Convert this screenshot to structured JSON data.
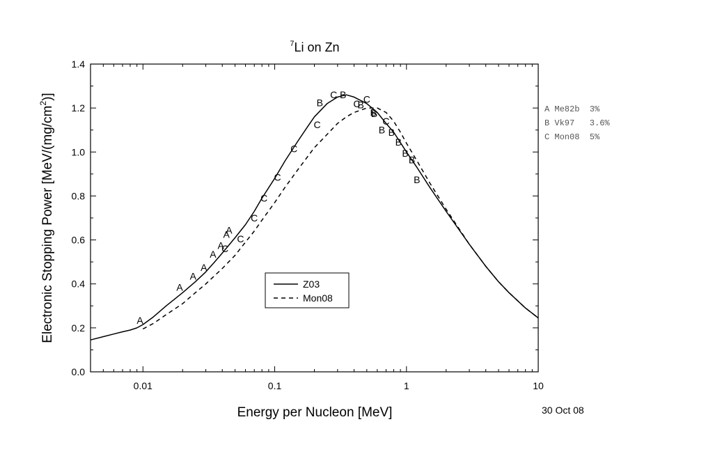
{
  "chart_data": {
    "type": "line",
    "title": {
      "superscript": "7",
      "text": "Li on Zn"
    },
    "xlabel": "Energy per Nucleon [MeV]",
    "ylabel": {
      "main": "Electronic Stopping Power [MeV/(mg/cm",
      "sup": "2",
      "end": ")]"
    },
    "xscale": "log",
    "xlim": [
      0.004,
      10
    ],
    "ylim": [
      0,
      1.4
    ],
    "x_ticks": [
      {
        "value": 0.01,
        "label": "0.01"
      },
      {
        "value": 0.1,
        "label": "0.1"
      },
      {
        "value": 1,
        "label": "1"
      },
      {
        "value": 10,
        "label": "10"
      }
    ],
    "y_ticks": [
      {
        "value": 0,
        "label": "0.0"
      },
      {
        "value": 0.2,
        "label": "0.2"
      },
      {
        "value": 0.4,
        "label": "0.4"
      },
      {
        "value": 0.6,
        "label": "0.6"
      },
      {
        "value": 0.8,
        "label": "0.8"
      },
      {
        "value": 1.0,
        "label": "1.0"
      },
      {
        "value": 1.2,
        "label": "1.2"
      },
      {
        "value": 1.4,
        "label": "1.4"
      }
    ],
    "series": [
      {
        "name": "Z03",
        "style": "solid",
        "x": [
          0.004,
          0.005,
          0.006,
          0.007,
          0.008,
          0.009,
          0.01,
          0.012,
          0.015,
          0.02,
          0.025,
          0.03,
          0.035,
          0.04,
          0.05,
          0.06,
          0.07,
          0.08,
          0.1,
          0.12,
          0.15,
          0.18,
          0.2,
          0.25,
          0.3,
          0.35,
          0.4,
          0.5,
          0.6,
          0.7,
          0.8,
          1.0,
          1.2,
          1.5,
          2.0,
          3.0,
          4.0,
          5.0,
          6.0,
          8.0,
          10.0
        ],
        "values": [
          0.145,
          0.16,
          0.172,
          0.182,
          0.19,
          0.2,
          0.215,
          0.25,
          0.3,
          0.36,
          0.41,
          0.455,
          0.5,
          0.54,
          0.61,
          0.67,
          0.73,
          0.79,
          0.88,
          0.96,
          1.05,
          1.12,
          1.16,
          1.22,
          1.25,
          1.26,
          1.25,
          1.22,
          1.18,
          1.13,
          1.09,
          1.0,
          0.93,
          0.84,
          0.73,
          0.58,
          0.48,
          0.41,
          0.36,
          0.29,
          0.245
        ]
      },
      {
        "name": "Mon08",
        "style": "dashed",
        "x": [
          0.01,
          0.012,
          0.015,
          0.02,
          0.025,
          0.03,
          0.04,
          0.05,
          0.06,
          0.07,
          0.08,
          0.1,
          0.12,
          0.15,
          0.2,
          0.25,
          0.3,
          0.35,
          0.4,
          0.5,
          0.6,
          0.7,
          0.8,
          0.9,
          1.0,
          1.2,
          1.5,
          2.0,
          3.0,
          4.0,
          5.0,
          6.0,
          8.0,
          10.0
        ],
        "values": [
          0.195,
          0.22,
          0.26,
          0.31,
          0.36,
          0.4,
          0.47,
          0.53,
          0.59,
          0.64,
          0.69,
          0.77,
          0.84,
          0.92,
          1.02,
          1.08,
          1.13,
          1.16,
          1.18,
          1.2,
          1.2,
          1.18,
          1.14,
          1.09,
          1.04,
          0.96,
          0.86,
          0.74,
          0.58,
          0.48,
          0.41,
          0.36,
          0.29,
          0.245
        ]
      }
    ],
    "markers": [
      {
        "label": "A",
        "x": 0.0095,
        "y": 0.235
      },
      {
        "label": "A",
        "x": 0.019,
        "y": 0.385
      },
      {
        "label": "A",
        "x": 0.024,
        "y": 0.435
      },
      {
        "label": "A",
        "x": 0.029,
        "y": 0.475
      },
      {
        "label": "A",
        "x": 0.034,
        "y": 0.535
      },
      {
        "label": "A",
        "x": 0.039,
        "y": 0.575
      },
      {
        "label": "A",
        "x": 0.043,
        "y": 0.625
      },
      {
        "label": "A",
        "x": 0.045,
        "y": 0.645
      },
      {
        "label": "C",
        "x": 0.042,
        "y": 0.56
      },
      {
        "label": "C",
        "x": 0.055,
        "y": 0.605
      },
      {
        "label": "C",
        "x": 0.07,
        "y": 0.7
      },
      {
        "label": "C",
        "x": 0.083,
        "y": 0.79
      },
      {
        "label": "C",
        "x": 0.105,
        "y": 0.885
      },
      {
        "label": "C",
        "x": 0.14,
        "y": 1.015
      },
      {
        "label": "C",
        "x": 0.21,
        "y": 1.125
      },
      {
        "label": "B",
        "x": 0.22,
        "y": 1.225
      },
      {
        "label": "C",
        "x": 0.28,
        "y": 1.26
      },
      {
        "label": "B",
        "x": 0.33,
        "y": 1.26
      },
      {
        "label": "C",
        "x": 0.42,
        "y": 1.22
      },
      {
        "label": "B",
        "x": 0.45,
        "y": 1.215
      },
      {
        "label": "C",
        "x": 0.5,
        "y": 1.24
      },
      {
        "label": "B",
        "x": 0.56,
        "y": 1.18
      },
      {
        "label": "B",
        "x": 0.57,
        "y": 1.175
      },
      {
        "label": "C",
        "x": 0.7,
        "y": 1.14
      },
      {
        "label": "B",
        "x": 0.65,
        "y": 1.1
      },
      {
        "label": "B",
        "x": 0.77,
        "y": 1.09
      },
      {
        "label": "B",
        "x": 0.87,
        "y": 1.045
      },
      {
        "label": "B",
        "x": 0.98,
        "y": 0.995
      },
      {
        "label": "B",
        "x": 1.1,
        "y": 0.965
      },
      {
        "label": "B",
        "x": 1.2,
        "y": 0.875
      }
    ],
    "legend": {
      "placement": "center",
      "entries": [
        {
          "name": "Z03",
          "style": "solid"
        },
        {
          "name": "Mon08",
          "style": "dashed"
        }
      ]
    },
    "marker_key": [
      "A Me82b  3%",
      "B Vk97   3.6%",
      "C Mon08  5%"
    ],
    "date": "30 Oct 08"
  }
}
